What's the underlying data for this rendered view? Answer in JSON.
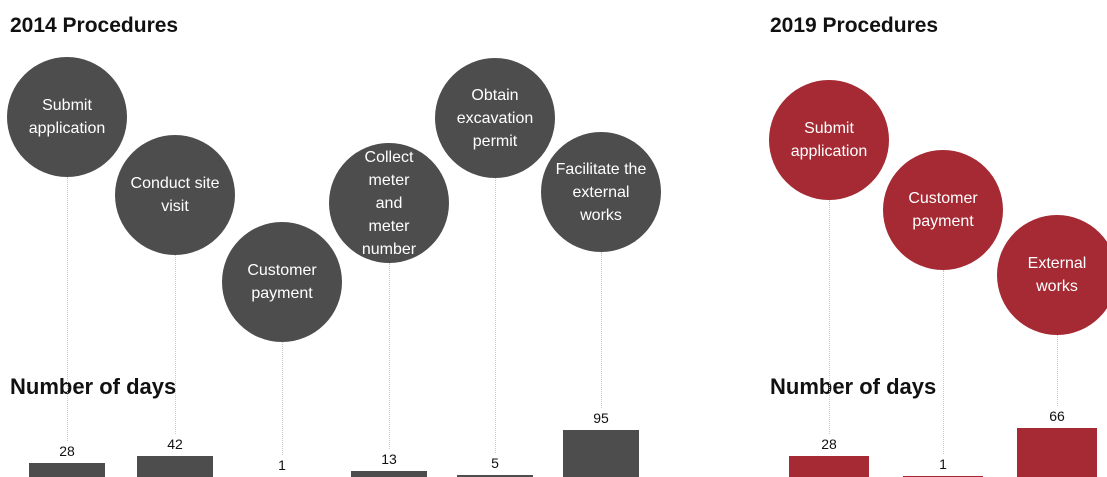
{
  "chart_data": [
    {
      "type": "bar",
      "title": "2014 Procedures",
      "subtitle": "Number of days",
      "color": "#4d4d4d",
      "categories": [
        "Submit application",
        "Conduct site visit",
        "Customer payment",
        "Collect meter and meter number",
        "Obtain excavation permit",
        "Facilitate the external works"
      ],
      "values": [
        28,
        42,
        1,
        13,
        5,
        95
      ]
    },
    {
      "type": "bar",
      "title": "2019 Procedures",
      "subtitle": "Number of days",
      "color": "#a52a33",
      "categories": [
        "Submit application",
        "Customer payment",
        "External works"
      ],
      "values": [
        28,
        1,
        66
      ]
    }
  ]
}
